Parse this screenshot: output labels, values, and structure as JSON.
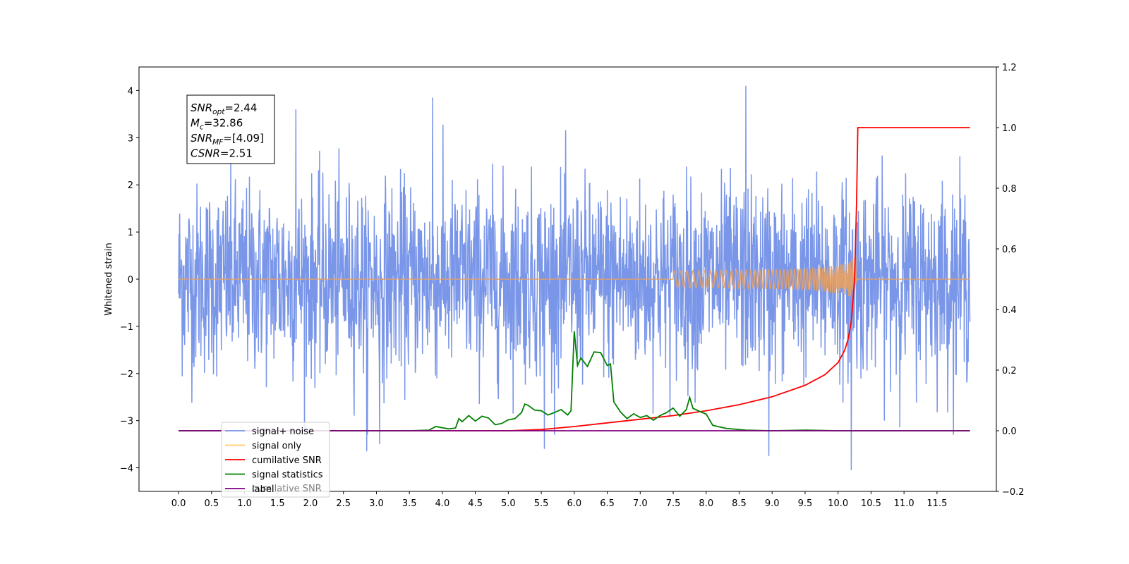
{
  "chart_data": {
    "type": "line",
    "title": "",
    "xlabel": "",
    "ylabel": "Whitened strain",
    "y2label": "",
    "xlim": [
      -0.6,
      12.4
    ],
    "ylim": [
      -4.5,
      4.5
    ],
    "y2lim": [
      -0.2,
      1.2
    ],
    "xticks": [
      "0.0",
      "0.5",
      "1.0",
      "1.5",
      "2.0",
      "2.5",
      "3.0",
      "3.5",
      "4.0",
      "4.5",
      "5.0",
      "5.5",
      "6.0",
      "6.5",
      "7.0",
      "7.5",
      "8.0",
      "8.5",
      "9.0",
      "9.5",
      "10.0",
      "10.5",
      "11.0",
      "11.5"
    ],
    "yticks": [
      "4",
      "3",
      "2",
      "1",
      "0",
      "−1",
      "−2",
      "−3",
      "−4"
    ],
    "y2ticks": [
      "1.2",
      "1.0",
      "0.8",
      "0.6",
      "0.4",
      "0.2",
      "0.0",
      "−0.2"
    ],
    "grid": false,
    "legend_position": "lower-left",
    "annotation": {
      "lines": [
        {
          "sym": "SNR",
          "sub": "opt",
          "value": "=2.44"
        },
        {
          "sym": "M",
          "sub": "c",
          "value": "=32.86"
        },
        {
          "sym": "SNR",
          "sub": "MF",
          "value": "=[4.09]"
        },
        {
          "sym": "CSNR",
          "sub": "",
          "value": "=2.51"
        }
      ]
    },
    "legend": [
      {
        "label": "signal+ noise",
        "color": "#7a96e8"
      },
      {
        "label": "signal only",
        "color": "#ffc966"
      },
      {
        "label": "cumilative SNR",
        "color": "#ff0000"
      },
      {
        "label": "signal statistics",
        "color": "#008000"
      },
      {
        "label": "label",
        "color": "#800080"
      }
    ],
    "legend_hidden_text": "cumilative SNR",
    "noise": {
      "name": "signal+ noise",
      "color": "#7a96e8",
      "x_range": [
        0.0,
        12.0
      ],
      "typical_amplitude": 1.0,
      "peaks": [
        {
          "x": 8.6,
          "y": 4.1
        },
        {
          "x": 3.85,
          "y": 3.85
        },
        {
          "x": 1.78,
          "y": 3.6
        },
        {
          "x": 10.2,
          "y": 3.45
        },
        {
          "x": 10.2,
          "y": -4.05
        },
        {
          "x": 8.95,
          "y": -3.75
        },
        {
          "x": 2.85,
          "y": -3.65
        },
        {
          "x": 3.05,
          "y": -3.5
        },
        {
          "x": 5.55,
          "y": -3.6
        }
      ]
    },
    "signal_only": {
      "name": "signal only",
      "color": "#e8a060",
      "x_range": [
        0.0,
        12.0
      ],
      "merger_x": 10.28,
      "peak_amplitude": 0.6
    },
    "series": [
      {
        "name": "cumilative SNR",
        "color": "#ff0000",
        "axis": "right",
        "x": [
          0.0,
          5.0,
          5.5,
          6.0,
          6.5,
          7.0,
          7.5,
          8.0,
          8.5,
          9.0,
          9.5,
          9.8,
          10.0,
          10.1,
          10.15,
          10.2,
          10.25,
          10.28,
          10.3,
          12.0
        ],
        "y": [
          0.0,
          0.0,
          0.004,
          0.014,
          0.026,
          0.038,
          0.05,
          0.066,
          0.086,
          0.112,
          0.15,
          0.185,
          0.225,
          0.265,
          0.3,
          0.36,
          0.5,
          0.75,
          1.0,
          1.0
        ]
      },
      {
        "name": "signal statistics",
        "color": "#008000",
        "axis": "right",
        "x": [
          0.0,
          3.5,
          3.8,
          3.9,
          4.0,
          4.1,
          4.2,
          4.25,
          4.3,
          4.4,
          4.5,
          4.6,
          4.7,
          4.8,
          4.9,
          5.0,
          5.1,
          5.2,
          5.25,
          5.3,
          5.4,
          5.5,
          5.6,
          5.7,
          5.8,
          5.9,
          5.95,
          6.0,
          6.05,
          6.1,
          6.2,
          6.3,
          6.4,
          6.5,
          6.55,
          6.6,
          6.7,
          6.8,
          6.9,
          7.0,
          7.1,
          7.2,
          7.3,
          7.4,
          7.5,
          7.6,
          7.7,
          7.75,
          7.8,
          7.9,
          8.0,
          8.1,
          8.3,
          8.6,
          9.0,
          9.5,
          10.0,
          10.5,
          12.0
        ],
        "y": [
          0.0,
          0.0,
          0.002,
          0.014,
          0.01,
          0.006,
          0.009,
          0.04,
          0.03,
          0.05,
          0.032,
          0.048,
          0.042,
          0.02,
          0.024,
          0.036,
          0.04,
          0.06,
          0.088,
          0.084,
          0.068,
          0.066,
          0.052,
          0.06,
          0.07,
          0.052,
          0.066,
          0.328,
          0.215,
          0.24,
          0.212,
          0.26,
          0.258,
          0.215,
          0.22,
          0.095,
          0.062,
          0.04,
          0.056,
          0.044,
          0.05,
          0.035,
          0.05,
          0.06,
          0.075,
          0.048,
          0.07,
          0.11,
          0.074,
          0.064,
          0.055,
          0.018,
          0.008,
          0.002,
          0.0,
          0.002,
          0.0,
          0.0,
          0.0
        ]
      },
      {
        "name": "label",
        "color": "#800080",
        "axis": "right",
        "x": [
          0.0,
          12.0
        ],
        "y": [
          0.0,
          0.0
        ]
      }
    ]
  }
}
